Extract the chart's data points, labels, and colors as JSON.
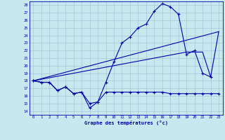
{
  "bg_color": "#c8e8f0",
  "grid_color": "#a0bece",
  "line_color": "#0000aa",
  "xlabel": "Graphe des températures (°c)",
  "ylim": [
    13.5,
    28.5
  ],
  "xlim": [
    -0.5,
    23.5
  ],
  "yticks": [
    14,
    15,
    16,
    17,
    18,
    19,
    20,
    21,
    22,
    23,
    24,
    25,
    26,
    27,
    28
  ],
  "xticks": [
    0,
    1,
    2,
    3,
    4,
    5,
    6,
    7,
    8,
    9,
    10,
    11,
    12,
    13,
    14,
    15,
    16,
    17,
    18,
    19,
    20,
    21,
    22,
    23
  ],
  "line_top_x": [
    0,
    1,
    2,
    3,
    4,
    5,
    6,
    7,
    8,
    9,
    10,
    11,
    12,
    13,
    14,
    15,
    16,
    17,
    18,
    19,
    20,
    21,
    22
  ],
  "line_top_y": [
    18.0,
    17.8,
    17.8,
    16.7,
    17.2,
    16.3,
    16.5,
    15.0,
    15.2,
    17.8,
    20.5,
    23.0,
    23.8,
    25.0,
    25.5,
    27.2,
    28.2,
    27.8,
    26.8,
    21.5,
    22.0,
    19.0,
    18.5
  ],
  "line_bot_x": [
    0,
    1,
    2,
    3,
    4,
    5,
    6,
    7,
    8,
    9,
    10,
    11,
    12,
    13,
    14,
    15,
    16,
    17,
    18,
    19,
    20,
    21,
    22,
    23
  ],
  "line_bot_y": [
    18.0,
    17.8,
    17.8,
    16.7,
    17.2,
    16.3,
    16.5,
    14.4,
    15.2,
    16.5,
    16.5,
    16.5,
    16.5,
    16.5,
    16.5,
    16.5,
    16.5,
    16.3,
    16.3,
    16.3,
    16.3,
    16.3,
    16.3,
    16.3
  ],
  "line_trend_x": [
    0,
    23
  ],
  "line_trend_y": [
    18.0,
    24.5
  ],
  "line_avg_x": [
    0,
    19,
    20,
    21,
    22,
    23
  ],
  "line_avg_y": [
    18.0,
    21.8,
    21.8,
    21.8,
    18.5,
    24.5
  ]
}
